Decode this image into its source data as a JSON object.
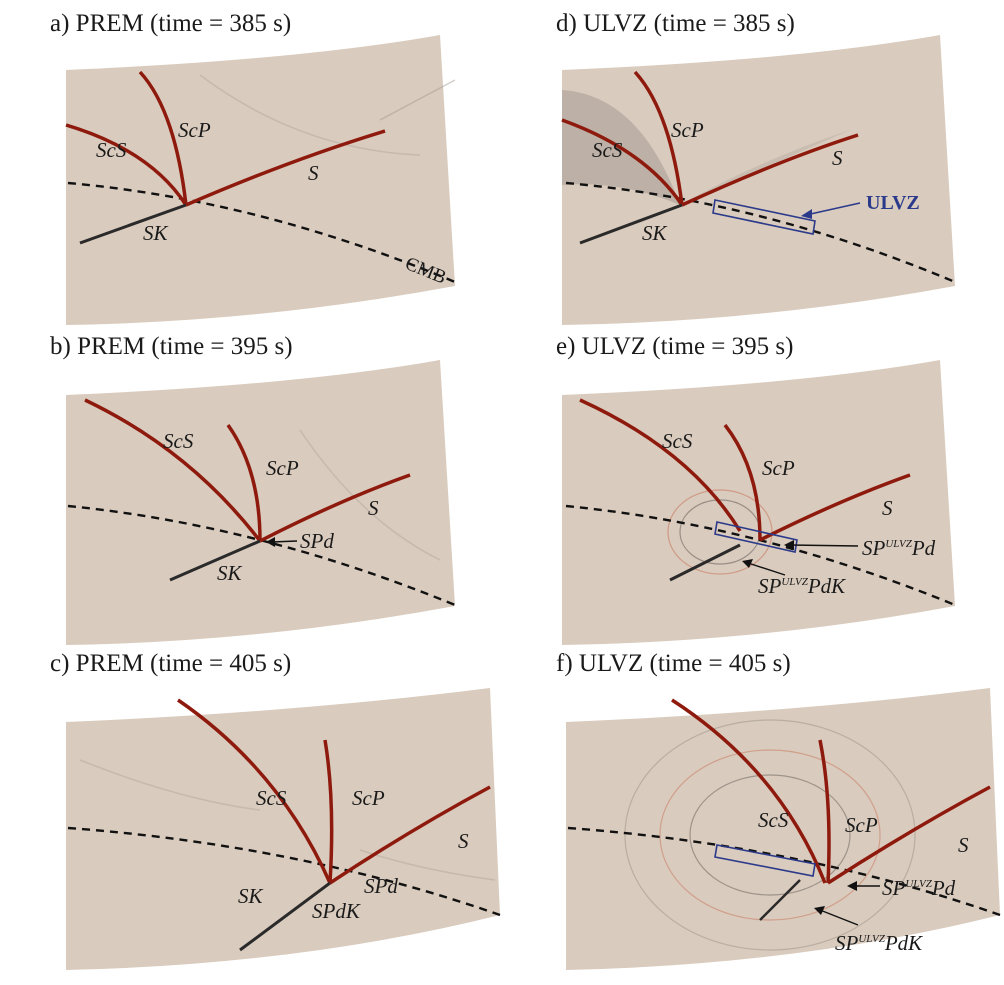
{
  "panels": {
    "a": {
      "title": "a) PREM (time = 385 s)",
      "labels": {
        "scs": "ScS",
        "scp": "ScP",
        "s": "S",
        "sk": "SK",
        "cmb": "CMB"
      }
    },
    "b": {
      "title": "b) PREM (time = 395 s)",
      "labels": {
        "scs": "ScS",
        "scp": "ScP",
        "s": "S",
        "sk": "SK",
        "spd": "SPd"
      }
    },
    "c": {
      "title": "c) PREM (time = 405 s)",
      "labels": {
        "scs": "ScS",
        "scp": "ScP",
        "s": "S",
        "sk": "SK",
        "spd": "SPd",
        "spdk": "SPdK"
      }
    },
    "d": {
      "title": "d) ULVZ (time = 385 s)",
      "labels": {
        "scs": "ScS",
        "scp": "ScP",
        "s": "S",
        "sk": "SK",
        "ulvz": "ULVZ"
      }
    },
    "e": {
      "title": "e) ULVZ (time = 395 s)",
      "labels": {
        "scs": "ScS",
        "scp": "ScP",
        "s": "S",
        "sp_ulvz_pd_a": "SP",
        "sp_ulvz_pd_sup": "ULVZ",
        "sp_ulvz_pd_b": "Pd",
        "sp_ulvz_pdk_a": "SP",
        "sp_ulvz_pdk_sup": "ULVZ",
        "sp_ulvz_pdk_b": "PdK"
      }
    },
    "f": {
      "title": "f) ULVZ (time = 405 s)",
      "labels": {
        "scs": "ScS",
        "scp": "ScP",
        "s": "S",
        "sp_ulvz_pd_a": "SP",
        "sp_ulvz_pd_sup": "ULVZ",
        "sp_ulvz_pd_b": "Pd",
        "sp_ulvz_pdk_a": "SP",
        "sp_ulvz_pdk_sup": "ULVZ",
        "sp_ulvz_pdk_b": "PdK"
      }
    }
  },
  "colors": {
    "background_field": "#d9cbbd",
    "wavefront_red": "#8e1a0e",
    "wavefront_dark": "#2a2a2a",
    "ulvz_box": "#2b3a8a",
    "cmb_line": "#111111"
  }
}
